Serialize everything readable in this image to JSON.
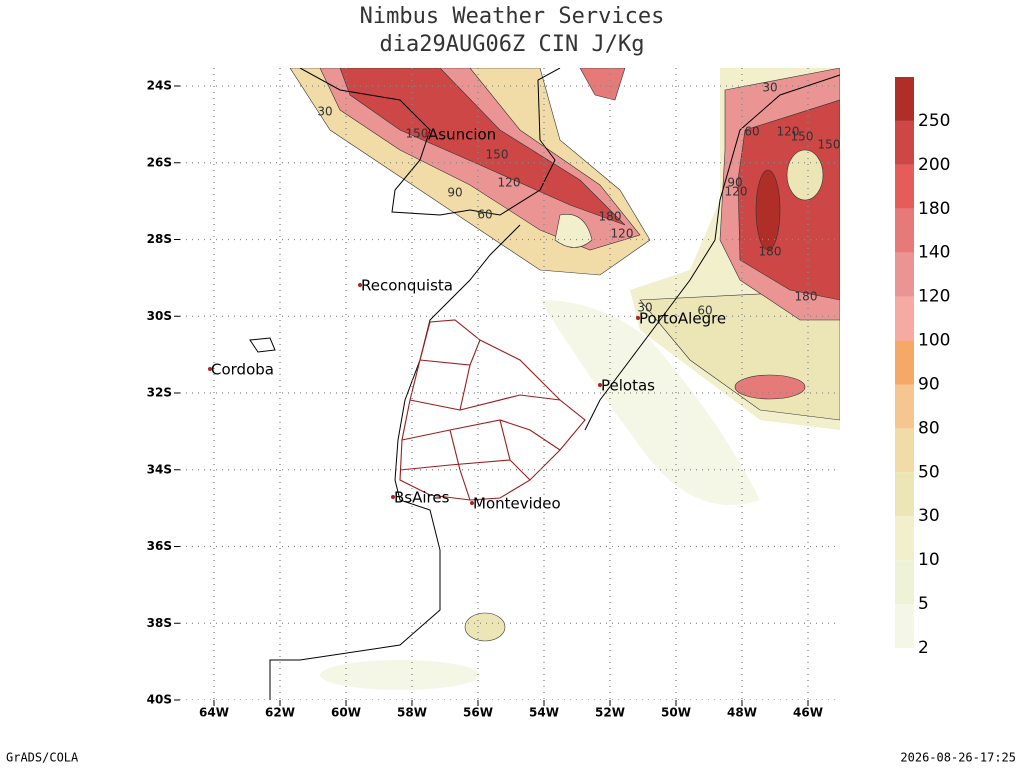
{
  "header": {
    "title": "Nimbus Weather Services",
    "subtitle": "dia29AUG06Z CIN J/Kg"
  },
  "axes": {
    "lon_labels": [
      "64W",
      "62W",
      "60W",
      "58W",
      "56W",
      "54W",
      "52W",
      "50W",
      "48W",
      "46W"
    ],
    "lat_labels": [
      "24S",
      "26S",
      "28S",
      "30S",
      "32S",
      "34S",
      "36S",
      "38S",
      "40S"
    ]
  },
  "cities": [
    "Asuncion",
    "Reconquista",
    "PortoAlegre",
    "Cordoba",
    "Pelotas",
    "BsAires",
    "Montevideo"
  ],
  "contour_labels": [
    "30",
    "150",
    "150",
    "120",
    "90",
    "60",
    "180",
    "120",
    "30",
    "60",
    "120",
    "150",
    "150",
    "90",
    "120",
    "180",
    "180",
    "30",
    "60"
  ],
  "colorbar": {
    "labels": [
      "2",
      "5",
      "10",
      "30",
      "50",
      "80",
      "90",
      "100",
      "120",
      "140",
      "180",
      "200",
      "250"
    ],
    "colors": [
      "#f4f7e6",
      "#eef3d8",
      "#f1efcc",
      "#ece6b6",
      "#f1dba6",
      "#f5c68f",
      "#f6a866",
      "#f6aaa4",
      "#ea9494",
      "#e57a78",
      "#e65c5a",
      "#cc4745",
      "#b02e28"
    ]
  },
  "footer": {
    "left": "GrADS/COLA",
    "right": "2026-08-26-17:25"
  }
}
